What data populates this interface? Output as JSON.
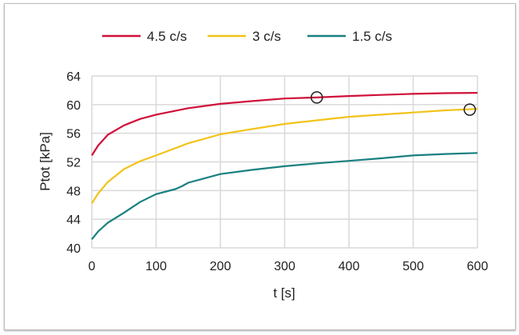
{
  "chart_data": {
    "type": "line",
    "title": "",
    "xlabel": "t [s]",
    "ylabel": "Ptot [kPa]",
    "xlim": [
      0,
      600
    ],
    "ylim": [
      40,
      64
    ],
    "xticks": [
      0,
      100,
      200,
      300,
      400,
      500,
      600
    ],
    "yticks": [
      40,
      44,
      48,
      52,
      56,
      60,
      64
    ],
    "grid": true,
    "legend_position": "top",
    "series": [
      {
        "name": "4.5 c/s",
        "color": "#d0103a",
        "x": [
          0,
          10,
          25,
          50,
          75,
          100,
          150,
          200,
          250,
          300,
          350,
          400,
          450,
          500,
          550,
          600
        ],
        "y": [
          52.9,
          54.3,
          55.8,
          57.1,
          58.0,
          58.6,
          59.5,
          60.1,
          60.5,
          60.85,
          61.0,
          61.2,
          61.35,
          61.5,
          61.6,
          61.65
        ]
      },
      {
        "name": "3 c/s",
        "color": "#f2c31a",
        "x": [
          0,
          10,
          25,
          50,
          75,
          100,
          150,
          200,
          250,
          300,
          350,
          400,
          450,
          500,
          550,
          600
        ],
        "y": [
          46.2,
          47.6,
          49.2,
          51.0,
          52.1,
          52.9,
          54.6,
          55.85,
          56.6,
          57.3,
          57.8,
          58.3,
          58.6,
          58.9,
          59.2,
          59.4
        ]
      },
      {
        "name": "1.5 c/s",
        "color": "#1a8080",
        "x": [
          0,
          10,
          25,
          50,
          75,
          100,
          130,
          140,
          150,
          200,
          250,
          300,
          350,
          400,
          450,
          500,
          550,
          600
        ],
        "y": [
          41.2,
          42.3,
          43.5,
          44.9,
          46.4,
          47.5,
          48.2,
          48.6,
          49.1,
          50.3,
          50.9,
          51.4,
          51.8,
          52.15,
          52.5,
          52.9,
          53.1,
          53.25
        ]
      }
    ],
    "annotations": [
      {
        "type": "circle-marker",
        "x": 350,
        "y": 61.0
      },
      {
        "type": "circle-marker",
        "x": 588,
        "y": 59.3
      }
    ]
  }
}
